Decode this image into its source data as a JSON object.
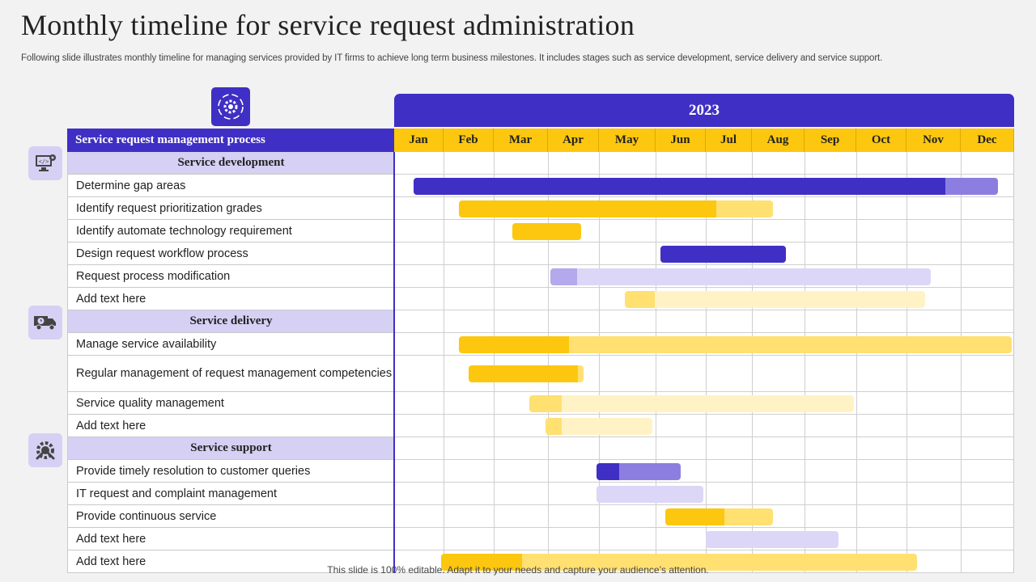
{
  "title": "Monthly timeline for service request administration",
  "subtitle": "Following slide illustrates monthly timeline for managing services provided by IT firms to achieve long term business milestones. It includes stages such as service development, service delivery and service support.",
  "footer": "This slide is 100% editable. Adapt it to your needs and capture your audience’s attention.",
  "year": "2023",
  "header_label": "Service request management process",
  "months": [
    "Jan",
    "Feb",
    "Mar",
    "Apr",
    "May",
    "Jun",
    "Jul",
    "Aug",
    "Sep",
    "Oct",
    "Nov",
    "Dec"
  ],
  "icons": {
    "top": "gear-cycle-icon",
    "development": "code-monitor-icon",
    "delivery": "delivery-truck-icon",
    "support": "support-tools-icon"
  },
  "colors": {
    "primary": "#3f2fc4",
    "primary_light": "#8c7ee0",
    "lavender": "#d6d0f4",
    "yellow": "#fcc70e",
    "yellow_light": "#ffe071",
    "yellow_pale": "#fff3c6",
    "lavender_bar": "#dcd6f7",
    "lavender_bar_dark": "#b3a9ec"
  },
  "sections": [
    {
      "name": "Service development",
      "rows": [
        {
          "label": "Determine gap areas",
          "start": 0.4,
          "end": 11.7,
          "progress": 0.91,
          "color": "primary"
        },
        {
          "label": "Identify request prioritization grades",
          "start": 1.3,
          "end": 7.4,
          "progress": 0.82,
          "color": "yellow"
        },
        {
          "label": "Identify automate technology requirement",
          "start": 2.35,
          "end": 3.65,
          "progress": 1.0,
          "color": "yellow"
        },
        {
          "label": "Design request workflow process",
          "start": 5.1,
          "end": 7.65,
          "progress": 1.0,
          "color": "primary"
        },
        {
          "label": "Request process modification",
          "start": 3.05,
          "end": 10.45,
          "progress": 0.07,
          "color": "lavender"
        },
        {
          "label": "Add text here",
          "start": 4.45,
          "end": 10.35,
          "progress": 0.1,
          "color": "yellow_pale"
        }
      ]
    },
    {
      "name": "Service delivery",
      "rows": [
        {
          "label": "Manage service availability",
          "start": 1.3,
          "end": 11.95,
          "progress": 0.2,
          "color": "yellow_mix"
        },
        {
          "label": "Regular management of request management competencies",
          "start": 1.5,
          "end": 3.7,
          "progress": 0.95,
          "color": "yellow"
        },
        {
          "label": "Service quality management",
          "start": 2.65,
          "end": 8.95,
          "progress": 0.1,
          "color": "yellow_pale"
        },
        {
          "label": "Add text here",
          "start": 2.95,
          "end": 4.95,
          "progress": 0.15,
          "color": "yellow_pale"
        }
      ]
    },
    {
      "name": "Service support",
      "rows": [
        {
          "label": "Provide timely resolution to customer queries",
          "start": 3.95,
          "end": 5.5,
          "progress": 0.27,
          "color": "primary_mix"
        },
        {
          "label": "IT request and complaint management",
          "start": 3.95,
          "end": 5.95,
          "progress": 0.0,
          "color": "lavender_plain"
        },
        {
          "label": "Provide continuous service",
          "start": 5.2,
          "end": 7.4,
          "progress": 0.55,
          "color": "yellow"
        },
        {
          "label": "Add text here",
          "start": 6.0,
          "end": 8.65,
          "progress": 0.0,
          "color": "lavender_plain"
        },
        {
          "label": "Add text here",
          "start": 0.95,
          "end": 10.2,
          "progress": 0.17,
          "color": "yellow_mix"
        }
      ]
    }
  ]
}
